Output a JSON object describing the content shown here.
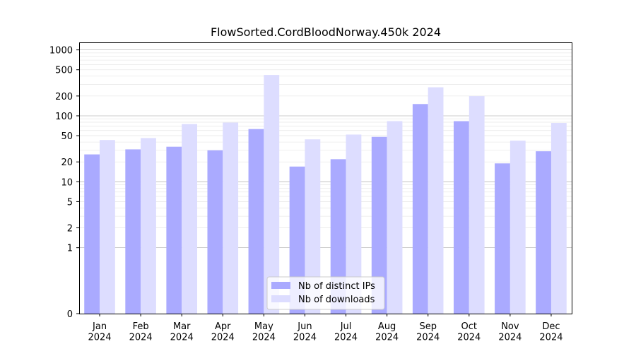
{
  "chart_data": {
    "type": "bar",
    "title": "FlowSorted.CordBloodNorway.450k 2024",
    "xlabel": "",
    "ylabel": "",
    "y_scale": "symlog",
    "ylim": [
      0,
      1300
    ],
    "y_ticks": [
      0,
      1,
      2,
      5,
      10,
      20,
      50,
      100,
      200,
      500,
      1000
    ],
    "categories": [
      "Jan\n2024",
      "Feb\n2024",
      "Mar\n2024",
      "Apr\n2024",
      "May\n2024",
      "Jun\n2024",
      "Jul\n2024",
      "Aug\n2024",
      "Sep\n2024",
      "Oct\n2024",
      "Nov\n2024",
      "Dec\n2024"
    ],
    "series": [
      {
        "name": "Nb of distinct IPs",
        "color": "#aaaaff",
        "values": [
          26,
          31,
          34,
          30,
          63,
          17,
          22,
          48,
          151,
          83,
          19,
          29
        ]
      },
      {
        "name": "Nb of downloads",
        "color": "#ddddff",
        "values": [
          43,
          46,
          75,
          79,
          417,
          44,
          52,
          83,
          271,
          199,
          42,
          78
        ]
      }
    ],
    "grid": true,
    "legend_position": "bottom-center"
  }
}
